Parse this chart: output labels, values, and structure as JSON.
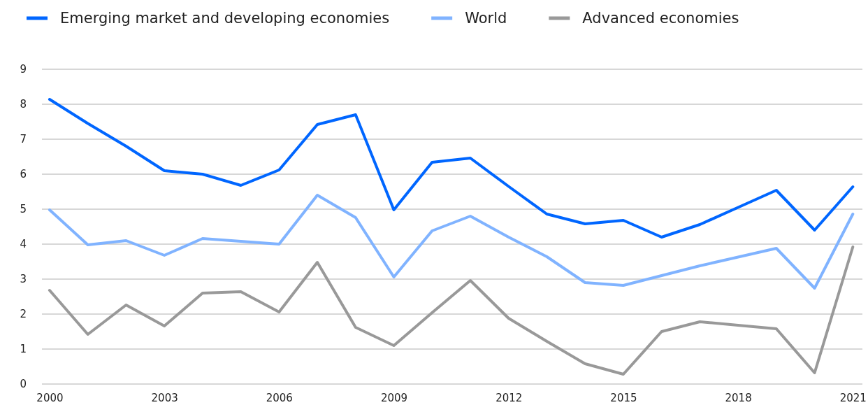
{
  "chart_data": {
    "type": "line",
    "x": [
      2000,
      2001,
      2002,
      2003,
      2004,
      2005,
      2006,
      2007,
      2008,
      2009,
      2010,
      2011,
      2012,
      2013,
      2014,
      2015,
      2016,
      2017,
      2018,
      2019,
      2020,
      2021
    ],
    "series": [
      {
        "name": "Emerging market and developing economies",
        "color": "#0066ff",
        "values": [
          8.14,
          7.45,
          6.8,
          6.1,
          6.0,
          5.68,
          6.12,
          7.42,
          7.7,
          4.98,
          6.34,
          6.46,
          5.65,
          4.86,
          4.58,
          4.68,
          4.2,
          4.56,
          5.05,
          5.54,
          4.4,
          5.64
        ]
      },
      {
        "name": "World",
        "color": "#80b3ff",
        "values": [
          4.98,
          3.98,
          4.1,
          3.68,
          4.16,
          4.08,
          4.0,
          5.4,
          4.76,
          3.06,
          4.38,
          4.8,
          4.2,
          3.64,
          2.9,
          2.82,
          3.1,
          3.38,
          3.63,
          3.88,
          2.74,
          4.86
        ]
      },
      {
        "name": "Advanced economies",
        "color": "#999999",
        "values": [
          2.68,
          1.42,
          2.26,
          1.66,
          2.6,
          2.64,
          2.06,
          3.48,
          1.62,
          1.1,
          2.04,
          2.96,
          1.88,
          1.22,
          0.58,
          0.28,
          1.5,
          1.78,
          1.68,
          1.58,
          0.32,
          3.92
        ]
      }
    ],
    "xlim": [
      1999.8,
      2021.25
    ],
    "xticks": [
      2000,
      2003,
      2006,
      2009,
      2012,
      2015,
      2018,
      2021
    ],
    "ylim": [
      0,
      9
    ],
    "yticks": [
      0,
      1,
      2,
      3,
      4,
      5,
      6,
      7,
      8,
      9
    ],
    "grid": "y",
    "legend": "top",
    "marker": "none",
    "line_style": "solid"
  }
}
